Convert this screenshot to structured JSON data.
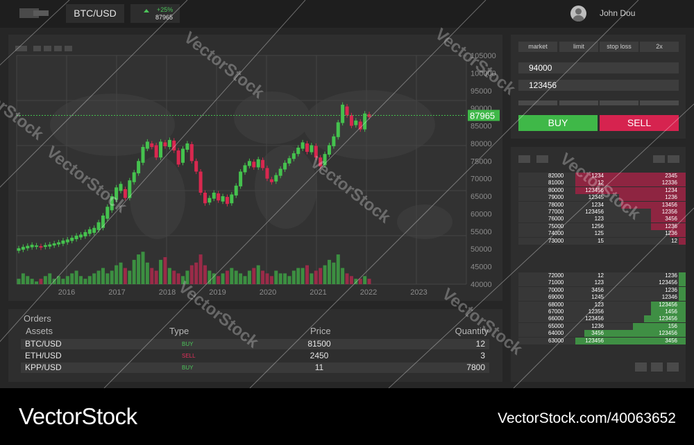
{
  "header": {
    "pair": "BTC/USD",
    "change": "+25%",
    "price": "87965",
    "user_name": "John Dou"
  },
  "chart_data": {
    "type": "candlestick",
    "x_ticks": [
      "2016",
      "2017",
      "2018",
      "2019",
      "2020",
      "2021",
      "2022",
      "2023"
    ],
    "y_ticks": [
      "105000",
      "100000",
      "95000",
      "90000",
      "85000",
      "80000",
      "75000",
      "70000",
      "65000",
      "60000",
      "55000",
      "50000",
      "45000",
      "40000"
    ],
    "ylim": [
      40000,
      105000
    ],
    "current_price": "87965",
    "price_scale": {
      "top": 105000,
      "bottom": 40000
    },
    "candles": [
      [
        49500,
        50200
      ],
      [
        49800,
        50600
      ],
      [
        50200,
        50900
      ],
      [
        50500,
        51200
      ],
      [
        50600,
        51000
      ],
      [
        50800,
        50400
      ],
      [
        50600,
        51100
      ],
      [
        50700,
        51300
      ],
      [
        51000,
        51600
      ],
      [
        51300,
        51900
      ],
      [
        51500,
        52400
      ],
      [
        51900,
        52700
      ],
      [
        52300,
        53200
      ],
      [
        52800,
        53800
      ],
      [
        53300,
        54100
      ],
      [
        53600,
        54800
      ],
      [
        54300,
        55600
      ],
      [
        54600,
        56000
      ],
      [
        55400,
        57600
      ],
      [
        56000,
        59500
      ],
      [
        58600,
        62000
      ],
      [
        61000,
        65000
      ],
      [
        64000,
        67500
      ],
      [
        66500,
        68500
      ],
      [
        67000,
        64500
      ],
      [
        64500,
        69500
      ],
      [
        69000,
        71800
      ],
      [
        71500,
        75000
      ],
      [
        74500,
        79000
      ],
      [
        78500,
        80500
      ],
      [
        80000,
        79000
      ],
      [
        79500,
        76000
      ],
      [
        76000,
        80500
      ],
      [
        80300,
        79200
      ],
      [
        79000,
        81000
      ],
      [
        80800,
        78000
      ],
      [
        78000,
        74000
      ],
      [
        74500,
        78500
      ],
      [
        78200,
        80000
      ],
      [
        79800,
        75000
      ],
      [
        75000,
        72000
      ],
      [
        72000,
        66000
      ],
      [
        66000,
        63000
      ],
      [
        63200,
        64500
      ],
      [
        64300,
        66000
      ],
      [
        65800,
        63800
      ],
      [
        63500,
        65000
      ],
      [
        64800,
        62800
      ],
      [
        63000,
        65500
      ],
      [
        65200,
        68000
      ],
      [
        67800,
        72000
      ],
      [
        71800,
        73800
      ],
      [
        73600,
        75000
      ],
      [
        74800,
        73200
      ],
      [
        73200,
        75500
      ],
      [
        75300,
        73000
      ],
      [
        73000,
        70000
      ],
      [
        69800,
        69000
      ],
      [
        69200,
        71000
      ],
      [
        70800,
        72800
      ],
      [
        72600,
        74500
      ],
      [
        74300,
        75800
      ],
      [
        75600,
        77200
      ],
      [
        77000,
        78800
      ],
      [
        78500,
        80300
      ],
      [
        80000,
        77600
      ],
      [
        77500,
        79500
      ],
      [
        79300,
        76000
      ],
      [
        76000,
        73500
      ],
      [
        73800,
        77000
      ],
      [
        76800,
        79500
      ],
      [
        79200,
        82000
      ],
      [
        81800,
        86000
      ],
      [
        85800,
        91000
      ],
      [
        90500,
        88000
      ],
      [
        88000,
        85000
      ],
      [
        85200,
        86500
      ],
      [
        86200,
        84000
      ],
      [
        84000,
        88500
      ],
      [
        88300,
        87500
      ]
    ],
    "volumes": [
      2,
      4,
      3,
      2,
      1,
      2,
      3,
      4,
      2,
      3,
      2,
      3,
      4,
      5,
      3,
      2,
      3,
      4,
      5,
      6,
      4,
      5,
      7,
      8,
      6,
      5,
      9,
      11,
      12,
      8,
      6,
      5,
      9,
      10,
      6,
      5,
      4,
      3,
      5,
      7,
      8,
      11,
      7,
      5,
      4,
      3,
      4,
      5,
      6,
      5,
      4,
      3,
      5,
      6,
      7,
      5,
      4,
      3,
      5,
      4,
      4,
      3,
      5,
      6,
      6,
      7,
      4,
      5,
      6,
      7,
      9,
      8,
      11,
      6,
      4,
      3,
      2,
      2,
      3,
      2
    ]
  },
  "orders": {
    "title": "Orders",
    "headers": {
      "asset": "Assets",
      "type": "Type",
      "price": "Price",
      "quantity": "Quantity"
    },
    "rows": [
      {
        "asset": "BTC/USD",
        "type": "BUY",
        "price": "81500",
        "quantity": "12"
      },
      {
        "asset": "ETH/USD",
        "type": "SELL",
        "price": "2450",
        "quantity": "3"
      },
      {
        "asset": "KPP/USD",
        "type": "BUY",
        "price": "11",
        "quantity": "7800"
      }
    ]
  },
  "trade": {
    "tabs": [
      "market",
      "limit",
      "stop loss",
      "2x"
    ],
    "price_value": "94000",
    "amount_value": "123456",
    "buy_label": "BUY",
    "sell_label": "SELL",
    "colors": {
      "buy": "#3fb848",
      "sell": "#d6234f"
    }
  },
  "order_book": {
    "asks": [
      {
        "price": "82000",
        "qty": "1234",
        "total": "2345",
        "depth": 0.63
      },
      {
        "price": "81000",
        "qty": "12",
        "total": "12336",
        "depth": 0.63
      },
      {
        "price": "80000",
        "qty": "123456",
        "total": "1234",
        "depth": 0.63
      },
      {
        "price": "79000",
        "qty": "12345",
        "total": "1236",
        "depth": 0.38
      },
      {
        "price": "78000",
        "qty": "1234",
        "total": "13456",
        "depth": 0.37
      },
      {
        "price": "77000",
        "qty": "123456",
        "total": "12356",
        "depth": 0.2
      },
      {
        "price": "76000",
        "qty": "123",
        "total": "3456",
        "depth": 0.2
      },
      {
        "price": "75000",
        "qty": "1256",
        "total": "1236",
        "depth": 0.2
      },
      {
        "price": "74000",
        "qty": "125",
        "total": "1236",
        "depth": 0.09
      },
      {
        "price": "73000",
        "qty": "15",
        "total": "12",
        "depth": 0.04
      }
    ],
    "bids": [
      {
        "price": "72000",
        "qty": "12",
        "total": "1236",
        "depth": 0.04
      },
      {
        "price": "71000",
        "qty": "123",
        "total": "123456",
        "depth": 0.04
      },
      {
        "price": "70000",
        "qty": "3456",
        "total": "1236",
        "depth": 0.04
      },
      {
        "price": "69000",
        "qty": "1245",
        "total": "12346",
        "depth": 0.04
      },
      {
        "price": "68000",
        "qty": "123",
        "total": "123456",
        "depth": 0.2
      },
      {
        "price": "67000",
        "qty": "12356",
        "total": "1456",
        "depth": 0.2
      },
      {
        "price": "66000",
        "qty": "123456",
        "total": "123456",
        "depth": 0.24
      },
      {
        "price": "65000",
        "qty": "1236",
        "total": "156",
        "depth": 0.3
      },
      {
        "price": "64000",
        "qty": "3456",
        "total": "123456",
        "depth": 0.58
      },
      {
        "price": "63000",
        "qty": "123456",
        "total": "3456",
        "depth": 0.63
      }
    ]
  },
  "watermark": "VectorStock",
  "footer": {
    "brand": "VectorStock",
    "id": "VectorStock.com/40063652"
  }
}
